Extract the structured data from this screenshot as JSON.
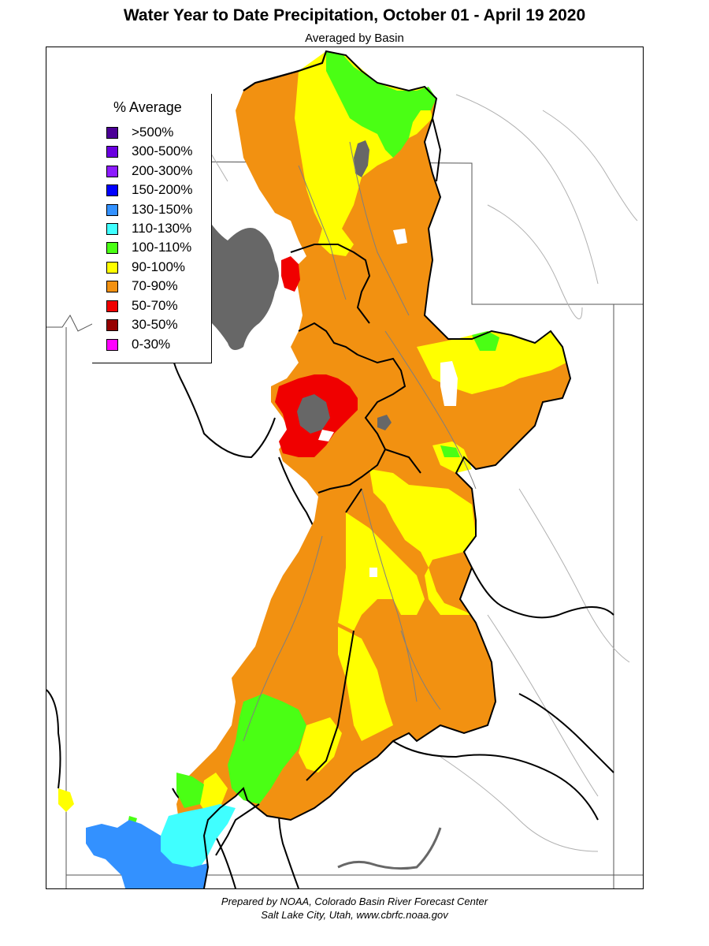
{
  "header": {
    "title": "Water Year to Date Precipitation, October 01  - April 19 2020",
    "subtitle": "Averaged by Basin"
  },
  "legend": {
    "title": "% Average",
    "items": [
      {
        "label": ">500%",
        "color": "#4b0096"
      },
      {
        "label": "300-500%",
        "color": "#6a00e0"
      },
      {
        "label": "200-300%",
        "color": "#8c1cff"
      },
      {
        "label": "150-200%",
        "color": "#0000ff"
      },
      {
        "label": "130-150%",
        "color": "#3391ff"
      },
      {
        "label": "110-130%",
        "color": "#40ffff"
      },
      {
        "label": "100-110%",
        "color": "#4aff14"
      },
      {
        "label": "90-100%",
        "color": "#ffff00"
      },
      {
        "label": "70-90%",
        "color": "#f29111"
      },
      {
        "label": "50-70%",
        "color": "#f00000"
      },
      {
        "label": "30-50%",
        "color": "#960000"
      },
      {
        "label": "0-30%",
        "color": "#ff00ff"
      }
    ]
  },
  "map": {
    "lake_color": "#676767",
    "river_color": "#7f7f7f",
    "boundary_color": "#000000",
    "state_line_color": "#555555"
  },
  "footer": {
    "line1": "Prepared by NOAA, Colorado Basin River Forecast Center",
    "line2": "Salt Lake City, Utah, www.cbrfc.noaa.gov"
  }
}
